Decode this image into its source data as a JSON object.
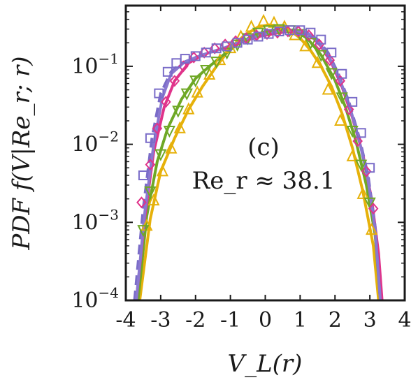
{
  "chart_data": {
    "type": "line",
    "xlabel": "V_L(r)",
    "ylabel": "PDF f(V|Re_r; r)",
    "xlim": [
      -4,
      4
    ],
    "ylim": [
      0.0001,
      0.6
    ],
    "yscale": "log",
    "x_ticks": [
      "-4",
      "-3",
      "-2",
      "-1",
      "0",
      "1",
      "2",
      "3",
      "4"
    ],
    "y_ticks": [
      {
        "base": "10",
        "exp": "−1",
        "value": 0.1
      },
      {
        "base": "10",
        "exp": "−2",
        "value": 0.01
      },
      {
        "base": "10",
        "exp": "−3",
        "value": 0.001
      },
      {
        "base": "10",
        "exp": "−4",
        "value": 0.0001
      }
    ],
    "grid": false,
    "annotations": [
      "(c)",
      "Re_r ≈ 38.1"
    ],
    "series": [
      {
        "color": "#e6b10a",
        "marker": "triangle-up",
        "x": [
          -3.4,
          -3.2,
          -2.95,
          -2.7,
          -2.45,
          -2.2,
          -1.95,
          -1.6,
          -1.3,
          -1.0,
          -0.7,
          -0.4,
          -0.05,
          0.25,
          0.55,
          0.85,
          1.15,
          1.5,
          1.8,
          2.15,
          2.5,
          2.8,
          3.05
        ],
        "y": [
          0.0009,
          0.0019,
          0.0045,
          0.0088,
          0.016,
          0.028,
          0.046,
          0.078,
          0.12,
          0.17,
          0.24,
          0.32,
          0.38,
          0.36,
          0.32,
          0.25,
          0.18,
          0.11,
          0.05,
          0.02,
          0.007,
          0.0023,
          0.0008
        ]
      },
      {
        "color": "#6fa826",
        "marker": "triangle-down",
        "x": [
          -3.5,
          -3.3,
          -3.0,
          -2.75,
          -2.5,
          -2.25,
          -2.0,
          -1.7,
          -1.4,
          -1.1,
          -0.8,
          -0.5,
          -0.2,
          0.1,
          0.4,
          0.7,
          1.0,
          1.3,
          1.6,
          1.9,
          2.2,
          2.5,
          2.75,
          3.0
        ],
        "y": [
          0.0008,
          0.0025,
          0.0075,
          0.015,
          0.027,
          0.045,
          0.066,
          0.09,
          0.115,
          0.15,
          0.19,
          0.23,
          0.27,
          0.29,
          0.3,
          0.29,
          0.26,
          0.2,
          0.14,
          0.082,
          0.04,
          0.015,
          0.0055,
          0.0018
        ]
      },
      {
        "color": "#e0338a",
        "marker": "diamond",
        "x": [
          -3.55,
          -3.3,
          -3.1,
          -2.85,
          -2.6,
          -2.35,
          -2.05,
          -1.75,
          -1.45,
          -1.15,
          -0.85,
          -0.55,
          -0.25,
          0.05,
          0.35,
          0.65,
          0.95,
          1.25,
          1.55,
          1.85,
          2.15,
          2.4,
          2.65,
          2.9,
          3.1
        ],
        "y": [
          0.0018,
          0.0055,
          0.016,
          0.035,
          0.065,
          0.1,
          0.13,
          0.15,
          0.17,
          0.19,
          0.21,
          0.23,
          0.25,
          0.26,
          0.27,
          0.28,
          0.28,
          0.25,
          0.19,
          0.12,
          0.065,
          0.028,
          0.011,
          0.0045,
          0.0015
        ]
      },
      {
        "color": "#7a6cc8",
        "marker": "square",
        "x": [
          -3.5,
          -3.3,
          -3.05,
          -2.8,
          -2.55,
          -2.3,
          -2.0,
          -1.7,
          -1.4,
          -1.1,
          -0.8,
          -0.5,
          -0.2,
          0.1,
          0.4,
          0.7,
          1.0,
          1.3,
          1.6,
          1.9,
          2.2,
          2.5,
          2.75,
          3.0
        ],
        "y": [
          0.004,
          0.012,
          0.045,
          0.085,
          0.11,
          0.125,
          0.135,
          0.15,
          0.17,
          0.18,
          0.2,
          0.22,
          0.24,
          0.26,
          0.28,
          0.29,
          0.29,
          0.27,
          0.22,
          0.15,
          0.08,
          0.035,
          0.014,
          0.005
        ]
      }
    ],
    "fits": [
      {
        "color": "#e6b10a",
        "style": "solid",
        "x": [
          -3.6,
          -3.3,
          -3.0,
          -2.6,
          -2.2,
          -1.8,
          -1.4,
          -1.0,
          -0.6,
          -0.2,
          0.1,
          0.4,
          0.7,
          1.0,
          1.3,
          1.6,
          1.9,
          2.2,
          2.5,
          2.8,
          3.1,
          3.25
        ],
        "y": [
          0.0001,
          0.0011,
          0.0045,
          0.012,
          0.028,
          0.055,
          0.1,
          0.17,
          0.25,
          0.32,
          0.34,
          0.33,
          0.29,
          0.23,
          0.16,
          0.1,
          0.055,
          0.025,
          0.009,
          0.0025,
          0.0005,
          0.0001
        ]
      },
      {
        "color": "#6fa826",
        "style": "solid",
        "x": [
          -3.65,
          -3.4,
          -3.1,
          -2.8,
          -2.4,
          -2.0,
          -1.6,
          -1.2,
          -0.8,
          -0.4,
          0.0,
          0.4,
          0.8,
          1.2,
          1.6,
          2.0,
          2.3,
          2.6,
          2.9,
          3.15,
          3.3
        ],
        "y": [
          0.0001,
          0.0012,
          0.006,
          0.016,
          0.038,
          0.07,
          0.1,
          0.14,
          0.19,
          0.24,
          0.28,
          0.3,
          0.29,
          0.23,
          0.14,
          0.066,
          0.03,
          0.011,
          0.003,
          0.0007,
          0.0001
        ]
      },
      {
        "color": "#e0338a",
        "style": "solid",
        "x": [
          -3.7,
          -3.45,
          -3.2,
          -2.9,
          -2.6,
          -2.2,
          -1.8,
          -1.4,
          -1.0,
          -0.6,
          -0.2,
          0.2,
          0.6,
          1.0,
          1.3,
          1.6,
          1.9,
          2.2,
          2.5,
          2.8,
          3.05,
          3.25,
          3.35
        ],
        "y": [
          0.0001,
          0.0012,
          0.008,
          0.03,
          0.065,
          0.11,
          0.14,
          0.16,
          0.18,
          0.21,
          0.24,
          0.26,
          0.28,
          0.28,
          0.25,
          0.18,
          0.11,
          0.055,
          0.022,
          0.0075,
          0.002,
          0.0004,
          0.0001
        ]
      },
      {
        "color": "#7a6cc8",
        "style": "dashed",
        "x": [
          -3.75,
          -3.5,
          -3.25,
          -3.0,
          -2.7,
          -2.4,
          -2.0,
          -1.6,
          -1.2,
          -0.8,
          -0.4,
          0.0,
          0.4,
          0.8,
          1.2,
          1.5,
          1.8,
          2.1,
          2.4,
          2.7,
          2.95,
          3.15,
          3.3
        ],
        "y": [
          0.0001,
          0.0015,
          0.012,
          0.045,
          0.085,
          0.11,
          0.13,
          0.15,
          0.17,
          0.2,
          0.23,
          0.26,
          0.28,
          0.29,
          0.27,
          0.22,
          0.15,
          0.08,
          0.035,
          0.012,
          0.004,
          0.0009,
          0.0001
        ]
      },
      {
        "color": "#8a78d0",
        "style": "solid",
        "x": [
          -3.7,
          -3.45,
          -3.2,
          -2.95,
          -2.7,
          -2.35,
          -2.0,
          -1.6,
          -1.2,
          -0.8,
          -0.4,
          0.0,
          0.4,
          0.8,
          1.2,
          1.5,
          1.8,
          2.1,
          2.4,
          2.7,
          2.95,
          3.15,
          3.3
        ],
        "y": [
          0.0001,
          0.0014,
          0.01,
          0.04,
          0.08,
          0.11,
          0.13,
          0.15,
          0.17,
          0.2,
          0.23,
          0.26,
          0.28,
          0.29,
          0.27,
          0.21,
          0.14,
          0.075,
          0.033,
          0.011,
          0.0035,
          0.0008,
          0.0001
        ]
      }
    ]
  }
}
